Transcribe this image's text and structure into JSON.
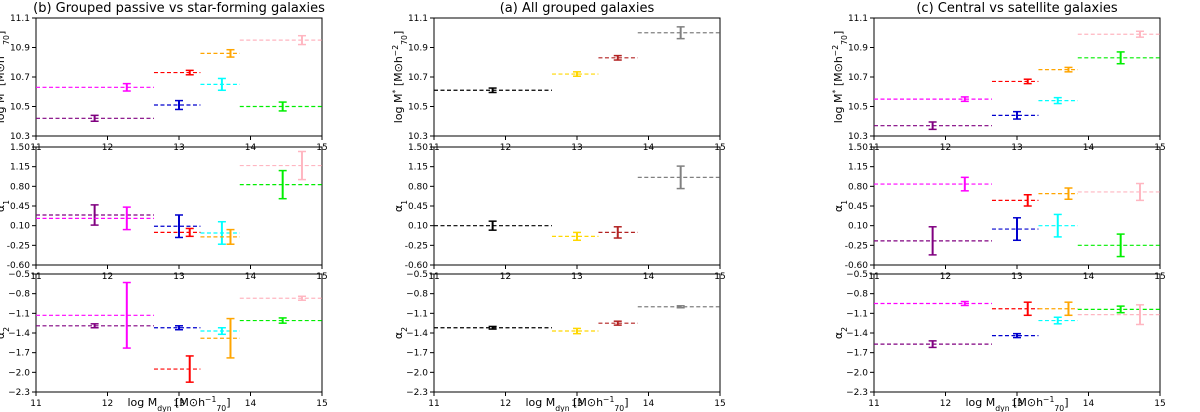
{
  "figure": {
    "x_axis_label": "log M",
    "x_axis_label_sub": "dyn",
    "x_axis_units": "[M⊙h",
    "x_axis_units_sup": "−1",
    "x_axis_units_sub": "70",
    "x_axis_units_close": "]"
  },
  "rows": [
    {
      "key": "mstar",
      "label": "log M",
      "label_sup": "*",
      "units": "[M⊙h",
      "units_sup": "−2",
      "units_sub": "70",
      "units_close": "]",
      "ylim": [
        10.3,
        11.1
      ],
      "ticks": [
        "10.3",
        "10.5",
        "10.7",
        "10.9",
        "11.1"
      ]
    },
    {
      "key": "alpha1",
      "label": "α",
      "label_sub": "1",
      "ylim": [
        -0.6,
        1.5
      ],
      "ticks": [
        "-0.60",
        "-0.25",
        "0.10",
        "0.45",
        "0.80",
        "1.15",
        "1.50"
      ]
    },
    {
      "key": "alpha2",
      "label": "α",
      "label_sub": "2",
      "ylim": [
        -2.3,
        -0.5
      ],
      "ticks": [
        "−2.3",
        "−2.0",
        "−1.7",
        "−1.4",
        "−1.1",
        "−0.8",
        "−0.5"
      ]
    }
  ],
  "chart_data": [
    {
      "type": "errorbar-step",
      "title": "(b) Grouped passive vs star-forming galaxies",
      "xlim": [
        11,
        15
      ],
      "xticks": [
        "11",
        "12",
        "13",
        "14",
        "15"
      ],
      "series": [
        {
          "color": "#800080",
          "x": 11.82,
          "xrange": [
            11.0,
            12.65
          ],
          "mstar": [
            10.42,
            0.02
          ],
          "alpha1": [
            0.29,
            0.18
          ],
          "alpha2": [
            -1.29,
            0.03
          ]
        },
        {
          "color": "#ff00ff",
          "x": 12.27,
          "xrange": [
            11.0,
            12.65
          ],
          "mstar": [
            10.63,
            0.025
          ],
          "alpha1": [
            0.23,
            0.2
          ],
          "alpha2": [
            -1.13,
            0.5
          ]
        },
        {
          "color": "#0000cd",
          "x": 13.0,
          "xrange": [
            12.65,
            13.3
          ],
          "mstar": [
            10.51,
            0.03
          ],
          "alpha1": [
            0.09,
            0.2
          ],
          "alpha2": [
            -1.32,
            0.03
          ]
        },
        {
          "color": "#ff0000",
          "x": 13.15,
          "xrange": [
            12.65,
            13.3
          ],
          "mstar": [
            10.73,
            0.015
          ],
          "alpha1": [
            -0.02,
            0.07
          ],
          "alpha2": [
            -1.95,
            0.2
          ]
        },
        {
          "color": "#00ffff",
          "x": 13.6,
          "xrange": [
            13.3,
            13.85
          ],
          "mstar": [
            10.65,
            0.04
          ],
          "alpha1": [
            -0.03,
            0.2
          ],
          "alpha2": [
            -1.37,
            0.05
          ]
        },
        {
          "color": "#ffa500",
          "x": 13.72,
          "xrange": [
            13.3,
            13.85
          ],
          "mstar": [
            10.86,
            0.025
          ],
          "alpha1": [
            -0.1,
            0.13
          ],
          "alpha2": [
            -1.48,
            0.3
          ]
        },
        {
          "color": "#00ee00",
          "x": 14.45,
          "xrange": [
            13.85,
            15.0
          ],
          "mstar": [
            10.5,
            0.03
          ],
          "alpha1": [
            0.83,
            0.25
          ],
          "alpha2": [
            -1.21,
            0.04
          ]
        },
        {
          "color": "#ffb6c1",
          "x": 14.72,
          "xrange": [
            13.85,
            15.0
          ],
          "mstar": [
            10.95,
            0.03
          ],
          "alpha1": [
            1.17,
            0.25
          ],
          "alpha2": [
            -0.87,
            0.03
          ]
        }
      ]
    },
    {
      "type": "errorbar-step",
      "title": "(a) All grouped galaxies",
      "xlim": [
        11,
        15
      ],
      "xticks": [
        "11",
        "12",
        "13",
        "14",
        "15"
      ],
      "series": [
        {
          "color": "#000000",
          "x": 11.82,
          "xrange": [
            11.0,
            12.65
          ],
          "mstar": [
            10.61,
            0.015
          ],
          "alpha1": [
            0.1,
            0.08
          ],
          "alpha2": [
            -1.32,
            0.02
          ]
        },
        {
          "color": "#ffd700",
          "x": 13.0,
          "xrange": [
            12.65,
            13.3
          ],
          "mstar": [
            10.72,
            0.015
          ],
          "alpha1": [
            -0.09,
            0.07
          ],
          "alpha2": [
            -1.37,
            0.04
          ]
        },
        {
          "color": "#b22222",
          "x": 13.57,
          "xrange": [
            13.3,
            13.85
          ],
          "mstar": [
            10.83,
            0.015
          ],
          "alpha1": [
            -0.02,
            0.1
          ],
          "alpha2": [
            -1.25,
            0.03
          ]
        },
        {
          "color": "#808080",
          "x": 14.45,
          "xrange": [
            13.85,
            15.0
          ],
          "mstar": [
            11.0,
            0.04
          ],
          "alpha1": [
            0.96,
            0.2
          ],
          "alpha2": [
            -1.0,
            0.015
          ]
        }
      ]
    },
    {
      "type": "errorbar-step",
      "title": "(c) Central vs satellite galaxies",
      "xlim": [
        11,
        15
      ],
      "xticks": [
        "11",
        "12",
        "13",
        "14",
        "15"
      ],
      "series": [
        {
          "color": "#800080",
          "x": 11.82,
          "xrange": [
            11.0,
            12.65
          ],
          "mstar": [
            10.37,
            0.025
          ],
          "alpha1": [
            -0.17,
            0.25
          ],
          "alpha2": [
            -1.57,
            0.05
          ]
        },
        {
          "color": "#ff00ff",
          "x": 12.27,
          "xrange": [
            11.0,
            12.65
          ],
          "mstar": [
            10.55,
            0.015
          ],
          "alpha1": [
            0.84,
            0.12
          ],
          "alpha2": [
            -0.95,
            0.03
          ]
        },
        {
          "color": "#0000cd",
          "x": 13.0,
          "xrange": [
            12.65,
            13.3
          ],
          "mstar": [
            10.44,
            0.025
          ],
          "alpha1": [
            0.04,
            0.2
          ],
          "alpha2": [
            -1.44,
            0.03
          ]
        },
        {
          "color": "#ff0000",
          "x": 13.15,
          "xrange": [
            12.65,
            13.3
          ],
          "mstar": [
            10.67,
            0.015
          ],
          "alpha1": [
            0.55,
            0.1
          ],
          "alpha2": [
            -1.03,
            0.1
          ]
        },
        {
          "color": "#00ffff",
          "x": 13.57,
          "xrange": [
            13.3,
            13.85
          ],
          "mstar": [
            10.54,
            0.02
          ],
          "alpha1": [
            0.1,
            0.2
          ],
          "alpha2": [
            -1.21,
            0.05
          ]
        },
        {
          "color": "#ffa500",
          "x": 13.72,
          "xrange": [
            13.3,
            13.85
          ],
          "mstar": [
            10.75,
            0.015
          ],
          "alpha1": [
            0.67,
            0.1
          ],
          "alpha2": [
            -1.03,
            0.1
          ]
        },
        {
          "color": "#00ee00",
          "x": 14.45,
          "xrange": [
            13.85,
            15.0
          ],
          "mstar": [
            10.83,
            0.04
          ],
          "alpha1": [
            -0.25,
            0.2
          ],
          "alpha2": [
            -1.04,
            0.05
          ]
        },
        {
          "color": "#ffb6c1",
          "x": 14.72,
          "xrange": [
            13.85,
            15.0
          ],
          "mstar": [
            10.99,
            0.02
          ],
          "alpha1": [
            0.7,
            0.15
          ],
          "alpha2": [
            -1.12,
            0.15
          ]
        }
      ]
    }
  ]
}
